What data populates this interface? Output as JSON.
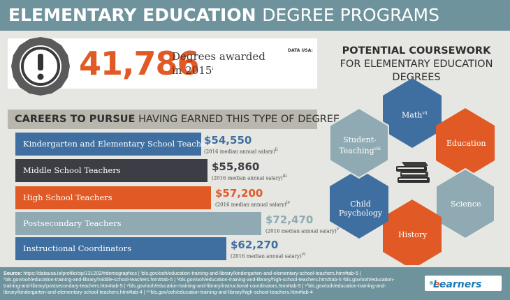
{
  "header": {
    "title_bold": "ELEMENTARY EDUCATION",
    "title_rest": "DEGREE PROGRAMS"
  },
  "stat": {
    "value": "41,786",
    "label": "Degrees awarded in 2015",
    "label_note": "i",
    "source": "DATA USA:"
  },
  "careers": {
    "title_bold": "CAREERS TO PURSUE",
    "title_rest": "HAVING EARNED THIS TYPE OF DEGREE",
    "items": [
      {
        "label": "Kindergarten and Elementary School Teachers",
        "salary": "$54,550",
        "note": "(2016 median annual salary)",
        "ref": "ii",
        "color": "#3f6fa0"
      },
      {
        "label": "Middle School Teachers",
        "salary": "$55,860",
        "note": "(2016 median annual salary)",
        "ref": "iii",
        "color": "#3d3d45"
      },
      {
        "label": "High School Teachers",
        "salary": "$57,200",
        "note": "(2016 median annual salary)",
        "ref": "iv",
        "color": "#e15a25"
      },
      {
        "label": "Postsecondary Teachers",
        "salary": "$72,470",
        "note": "(2016 median annual salary)",
        "ref": "v",
        "color": "#8faab2"
      },
      {
        "label": "Instructional Coordinators",
        "salary": "$62,270",
        "note": "(2016 median annual salary)",
        "ref": "vi",
        "color": "#3f6fa0"
      }
    ]
  },
  "coursework": {
    "title_bold": "POTENTIAL COURSEWORK",
    "title_rest": "FOR ELEMENTARY EDUCATION DEGREES",
    "items": [
      {
        "label": "Math",
        "ref": "vii",
        "color": "#3f6fa0"
      },
      {
        "label": "Education",
        "ref": "",
        "color": "#e15a25"
      },
      {
        "label": "Science",
        "ref": "",
        "color": "#8faab2"
      },
      {
        "label": "History",
        "ref": "",
        "color": "#e15a25"
      },
      {
        "label": "Child Psychology",
        "ref": "",
        "color": "#3f6fa0"
      },
      {
        "label": "Student-Teaching",
        "ref": "viii",
        "color": "#8faab2"
      }
    ],
    "center_icon": "books-icon"
  },
  "footer": {
    "source_label": "Source:",
    "text": "https://datausa.io/profile/cip/131202/#demographics | ⁱbls.gov/ooh/education-training-and-library/kindergarten-and-elementary-school-teachers.htm#tab-5 | ⁱⁱbls.gov/ooh/education-training-and-library/middle-school-teachers.htm#tab-5 | ⁱᵛbls.gov/ooh/education-training-and-library/high-school-teachers.htm#tab-5 ᵛbls.gov/ooh/education-training-and-library/postsecondary-teachers.htm#tab-5 | ᵛⁱbls.gov/ooh/education-training-and-library/instructional-coordinators.htm#tab-5 | ᵛⁱⁱbls.gov/ooh/education-training-and-library/kindergarten-and-elementary-school-teachers.htm#tab-4 | ᵛⁱⁱⁱbls.gov/ooh/education-training-and-library/high-school-teachers.htm#tab-4",
    "logo_e": "e",
    "logo_rest": "Learners",
    "logo_mark": "®"
  }
}
